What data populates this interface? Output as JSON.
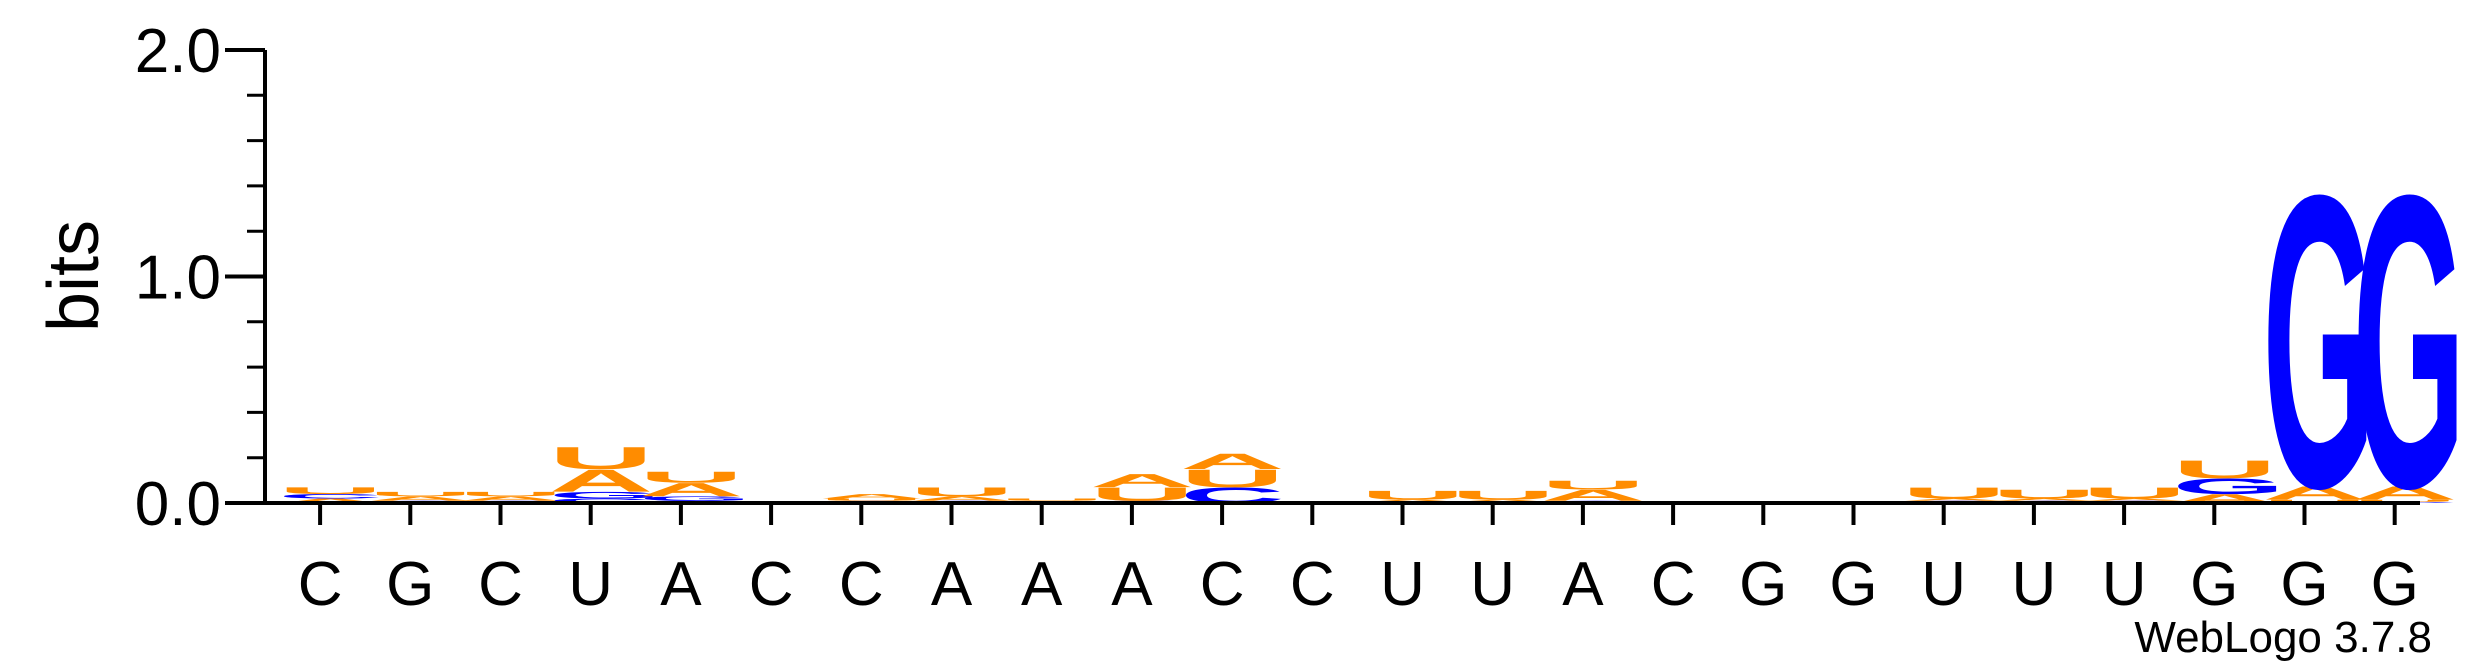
{
  "chart_data": {
    "type": "sequence-logo",
    "ylabel": "bits",
    "ylim": [
      0,
      2.0
    ],
    "yticks": [
      "0.0",
      "1.0",
      "2.0"
    ],
    "xlabels": [
      "C",
      "G",
      "C",
      "U",
      "A",
      "C",
      "C",
      "A",
      "A",
      "A",
      "C",
      "C",
      "U",
      "U",
      "A",
      "C",
      "G",
      "G",
      "U",
      "U",
      "U",
      "G",
      "G",
      "G"
    ],
    "credit": "WebLogo 3.7.8",
    "colors": {
      "A": "#ff8c00",
      "U": "#ff8c00",
      "G": "#0000ff",
      "C": "#0000ff"
    },
    "positions": [
      [
        {
          "l": "A",
          "h": 0.02
        },
        {
          "l": "C",
          "h": 0.02
        },
        {
          "l": "U",
          "h": 0.03
        }
      ],
      [
        {
          "l": "C",
          "h": 0.01
        },
        {
          "l": "A",
          "h": 0.02
        },
        {
          "l": "U",
          "h": 0.02
        }
      ],
      [
        {
          "l": "G",
          "h": 0.01
        },
        {
          "l": "A",
          "h": 0.02
        },
        {
          "l": "U",
          "h": 0.02
        }
      ],
      [
        {
          "l": "C",
          "h": 0.02
        },
        {
          "l": "G",
          "h": 0.03
        },
        {
          "l": "A",
          "h": 0.1
        },
        {
          "l": "U",
          "h": 0.1
        }
      ],
      [
        {
          "l": "C",
          "h": 0.01
        },
        {
          "l": "G",
          "h": 0.02
        },
        {
          "l": "A",
          "h": 0.06
        },
        {
          "l": "U",
          "h": 0.05
        }
      ],
      [
        {
          "l": "A",
          "h": 0.005
        }
      ],
      [
        {
          "l": "G",
          "h": 0.01
        },
        {
          "l": "U",
          "h": 0.01
        },
        {
          "l": "A",
          "h": 0.02
        }
      ],
      [
        {
          "l": "C",
          "h": 0.01
        },
        {
          "l": "A",
          "h": 0.02
        },
        {
          "l": "U",
          "h": 0.04
        }
      ],
      [
        {
          "l": "A",
          "h": 0.01
        },
        {
          "l": "U",
          "h": 0.01
        }
      ],
      [
        {
          "l": "C",
          "h": 0.01
        },
        {
          "l": "U",
          "h": 0.06
        },
        {
          "l": "A",
          "h": 0.06
        }
      ],
      [
        {
          "l": "C",
          "h": 0.07
        },
        {
          "l": "U",
          "h": 0.08
        },
        {
          "l": "A",
          "h": 0.07
        }
      ],
      [],
      [
        {
          "l": "C",
          "h": 0.005
        },
        {
          "l": "A",
          "h": 0.01
        },
        {
          "l": "U",
          "h": 0.04
        }
      ],
      [
        {
          "l": "C",
          "h": 0.005
        },
        {
          "l": "A",
          "h": 0.01
        },
        {
          "l": "U",
          "h": 0.04
        }
      ],
      [
        {
          "l": "C",
          "h": 0.01
        },
        {
          "l": "A",
          "h": 0.05
        },
        {
          "l": "U",
          "h": 0.04
        }
      ],
      [
        {
          "l": "A",
          "h": 0.005
        }
      ],
      [],
      [],
      [
        {
          "l": "C",
          "h": 0.01
        },
        {
          "l": "A",
          "h": 0.01
        },
        {
          "l": "U",
          "h": 0.05
        }
      ],
      [
        {
          "l": "C",
          "h": 0.01
        },
        {
          "l": "A",
          "h": 0.01
        },
        {
          "l": "U",
          "h": 0.04
        }
      ],
      [
        {
          "l": "C",
          "h": 0.01
        },
        {
          "l": "A",
          "h": 0.01
        },
        {
          "l": "U",
          "h": 0.05
        }
      ],
      [
        {
          "l": "A",
          "h": 0.04
        },
        {
          "l": "G",
          "h": 0.07
        },
        {
          "l": "U",
          "h": 0.08
        }
      ],
      [
        {
          "l": "C",
          "h": 0.005
        },
        {
          "l": "U",
          "h": 0.01
        },
        {
          "l": "A",
          "h": 0.06
        },
        {
          "l": "G",
          "h": 1.32
        }
      ],
      [
        {
          "l": "C",
          "h": 0.005
        },
        {
          "l": "U",
          "h": 0.01
        },
        {
          "l": "A",
          "h": 0.06
        },
        {
          "l": "G",
          "h": 1.32
        }
      ]
    ]
  }
}
